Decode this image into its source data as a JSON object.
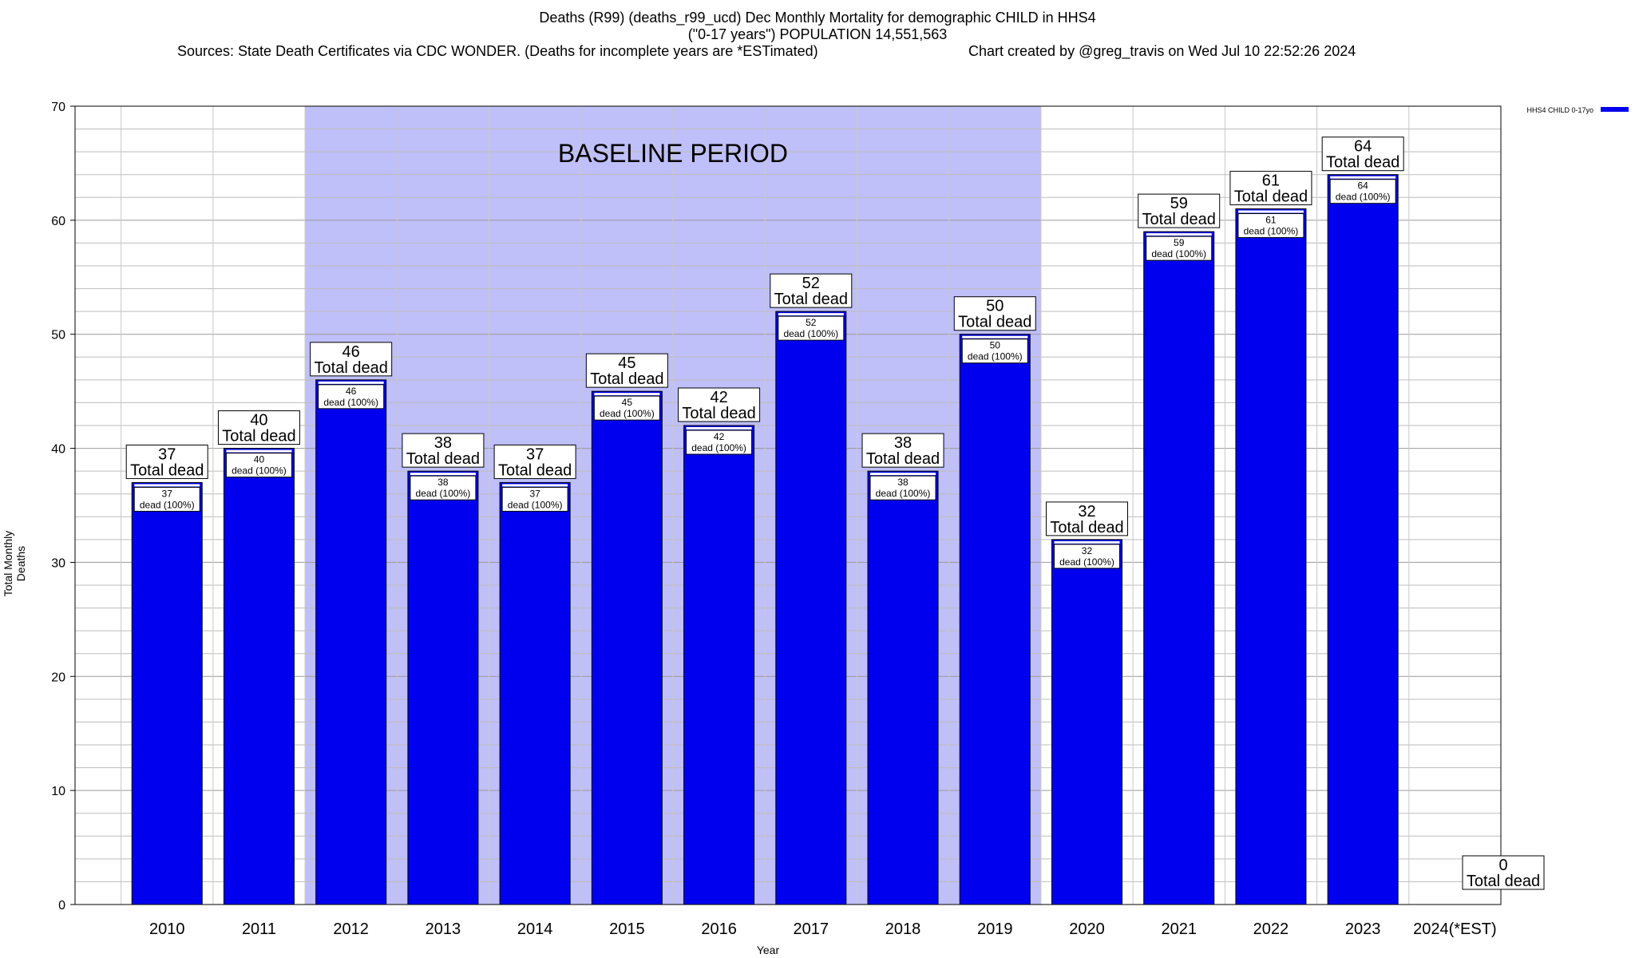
{
  "chart_data": {
    "type": "bar",
    "title_lines": [
      "Deaths (R99) (deaths_r99_ucd) Dec Monthly Mortality for demographic CHILD in HHS4",
      "(\"0-17 years\") POPULATION 14,551,563",
      "Sources: State Death Certificates via CDC WONDER. (Deaths for incomplete years are *ESTimated)"
    ],
    "credit": "Chart created by @greg_travis on Wed Jul 10 22:52:26 2024",
    "xlabel": "Year",
    "ylabel": "Total Monthly Deaths",
    "ylim": [
      0,
      70
    ],
    "yticks": [
      0,
      10,
      20,
      30,
      40,
      50,
      60,
      70
    ],
    "categories": [
      "2010",
      "2011",
      "2012",
      "2013",
      "2014",
      "2015",
      "2016",
      "2017",
      "2018",
      "2019",
      "2020",
      "2021",
      "2022",
      "2023",
      "2024(*EST)"
    ],
    "series": [
      {
        "name": "HHS4 CHILD 0-17yo",
        "color": "#0000ee",
        "values": [
          37,
          40,
          46,
          38,
          37,
          45,
          42,
          52,
          38,
          50,
          32,
          59,
          61,
          64,
          0
        ]
      }
    ],
    "top_label_suffix": "Total dead",
    "inner_label_suffix": "dead (100%)",
    "baseline": {
      "label": "BASELINE PERIOD",
      "from": "2012",
      "to": "2019",
      "color": "#bfbff9"
    },
    "grid": true,
    "legend_position": "top-right"
  }
}
